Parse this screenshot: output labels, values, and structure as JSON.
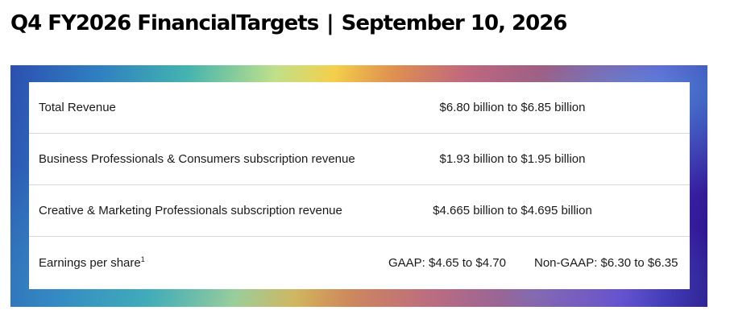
{
  "header": {
    "title_left": "Q4 FY2026 FinancialTargets",
    "separator": "|",
    "title_right": "September 10, 2026"
  },
  "table": {
    "rows": [
      {
        "label": "Total Revenue",
        "value": "$6.80 billion to $6.85 billion"
      },
      {
        "label": "Business Professionals & Consumers subscription revenue",
        "value": "$1.93 billion to $1.95 billion"
      },
      {
        "label": "Creative & Marketing Professionals subscription revenue",
        "value": "$4.665 billion to $4.695 billion"
      },
      {
        "label": "Earnings per share",
        "footnote": "1",
        "value_gaap": "GAAP: $4.65 to $4.70",
        "value_non_gaap": "Non-GAAP: $6.30 to $6.35"
      }
    ]
  }
}
